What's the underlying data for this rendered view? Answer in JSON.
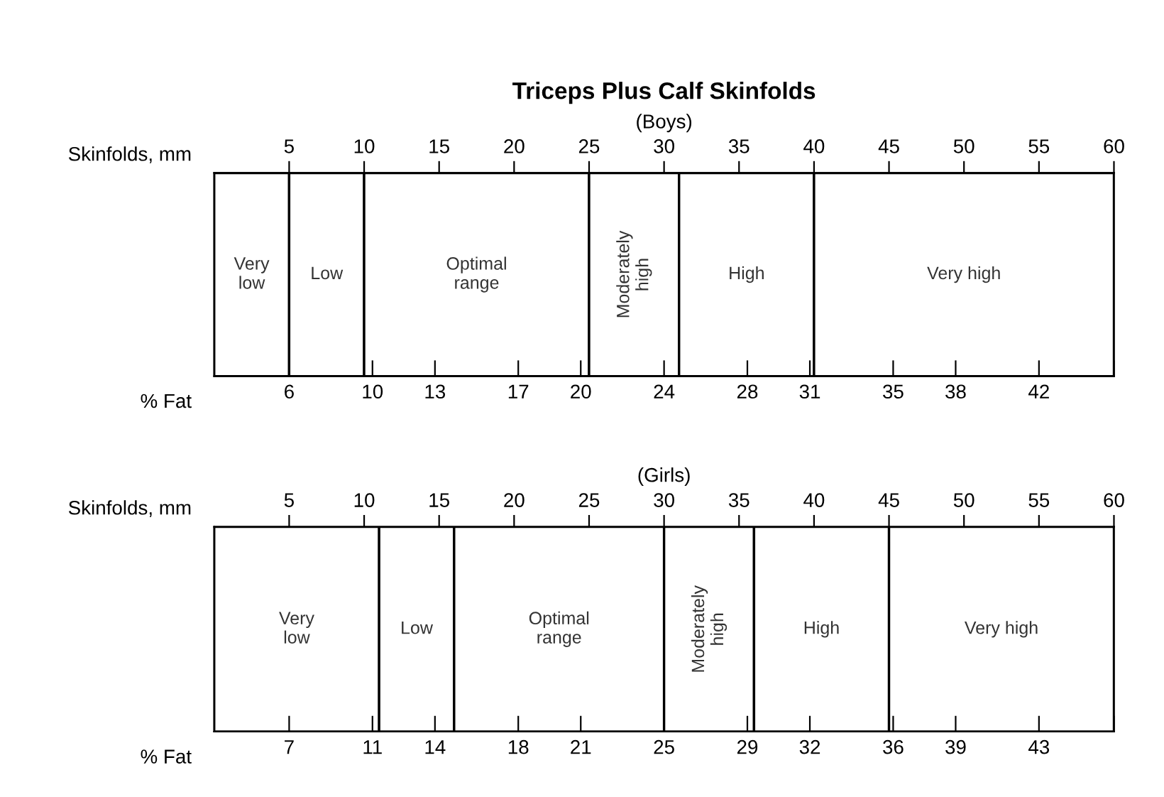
{
  "chart_data": [
    {
      "type": "bar",
      "orientation": "horizontal",
      "stacked": true,
      "title": "Triceps Plus Calf Skinfolds",
      "subtitle": "(Boys)",
      "xlabel": "Skinfolds, mm",
      "x2label": "% Fat",
      "categories": [
        null
      ],
      "xlim": [
        0,
        60
      ],
      "xticks": [
        5,
        10,
        15,
        20,
        25,
        30,
        35,
        40,
        45,
        50,
        55,
        60
      ],
      "x2lim": [
        2.4,
        45.6
      ],
      "x2ticks": [
        6,
        10,
        13,
        17,
        20,
        24,
        28,
        31,
        35,
        38,
        42,
        {
          "value": 45.6,
          "label": null
        }
      ],
      "series": [
        {
          "name": "Very\nlow",
          "color": "#ffffff",
          "values": [
            5
          ]
        },
        {
          "name": "Low",
          "color": "#ffffff",
          "values": [
            5
          ]
        },
        {
          "name": "Optimal\nrange",
          "color": "#ffffff",
          "values": [
            15
          ]
        },
        {
          "name": "Moderately\nhigh",
          "color": "#ffffff",
          "values": [
            6
          ]
        },
        {
          "name": "High",
          "color": "#ffffff",
          "values": [
            9
          ]
        },
        {
          "name": "Very high",
          "color": "#ffffff",
          "values": [
            20
          ]
        }
      ]
    },
    {
      "type": "bar",
      "orientation": "horizontal",
      "stacked": true,
      "title": "(Girls)",
      "xlabel": "Skinfolds, mm",
      "x2label": "% Fat",
      "categories": [
        null
      ],
      "xlim": [
        0,
        60
      ],
      "xticks": [
        5,
        10,
        15,
        20,
        25,
        30,
        35,
        40,
        45,
        50,
        55,
        60
      ],
      "x2lim": [
        3.4,
        46.6
      ],
      "x2ticks": [
        7,
        11,
        14,
        18,
        21,
        25,
        29,
        32,
        36,
        39,
        43,
        {
          "value": 46.6,
          "label": null
        }
      ],
      "series": [
        {
          "name": "Very\nlow",
          "color": "#ffffff",
          "values": [
            11
          ]
        },
        {
          "name": "Low",
          "color": "#ffffff",
          "values": [
            5
          ]
        },
        {
          "name": "Optimal\nrange",
          "color": "#ffffff",
          "values": [
            14
          ]
        },
        {
          "name": "Moderately\nhigh",
          "color": "#ffffff",
          "values": [
            6
          ]
        },
        {
          "name": "High",
          "color": "#ffffff",
          "values": [
            9
          ]
        },
        {
          "name": "Very high",
          "color": "#ffffff",
          "values": [
            15
          ]
        }
      ]
    }
  ]
}
